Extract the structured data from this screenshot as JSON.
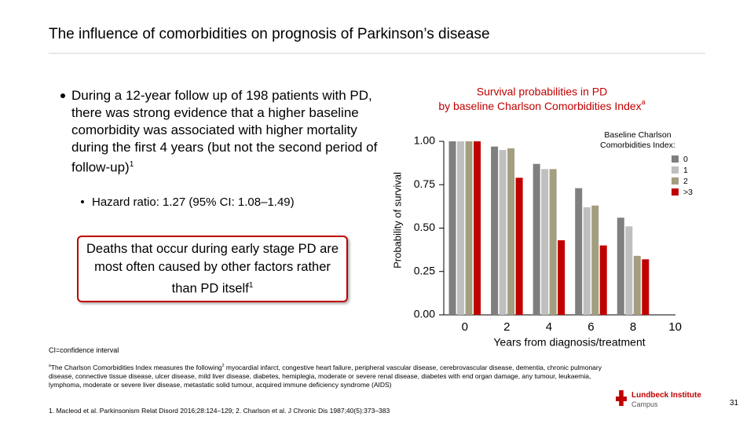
{
  "slide_title": "The influence of comorbidities on prognosis of Parkinson’s disease",
  "bullet": {
    "text": "During a 12-year follow up of 198 patients with PD, there was strong evidence that a higher baseline comorbidity was associated with higher mortality during the first 4 years (but not the second period of follow-up)",
    "ref": "1"
  },
  "sub_bullet": "Hazard ratio: 1.27 (95% CI: 1.08–1.49)",
  "callout": {
    "text": "Deaths that occur during early stage PD are most often caused by other factors rather than PD itself",
    "ref": "1"
  },
  "abbreviation": "CI=confidence interval",
  "footnote": {
    "marker": "a",
    "text_before": "The Charlson Comorbidities Index measures the following",
    "ref": "2",
    "text_after": " myocardial infarct, congestive heart failure, peripheral vascular disease, cerebrovascular disease, dementia, chronic pulmonary disease, connective tissue disease, ulcer disease, mild liver disease, diabetes, hemiplegia, moderate or severe renal disease, diabetes with end organ damage, any tumour, leukaemia, lymphoma, moderate or severe liver disease, metastatic solid tumour, acquired immune deficiency syndrome (AIDS)"
  },
  "references": "1. Macleod et al. Parkinsonism Relat Disord 2016;28:124–129; 2. Charlson et al. J Chronic Dis 1987;40(5):373–383",
  "logo": {
    "name": "Lundbeck Institute",
    "sub": "Campus"
  },
  "page_number": "31",
  "chart_data": {
    "type": "bar",
    "title": "Survival probabilities in PD",
    "subtitle": "by baseline Charlson Comorbidities Index",
    "title_ref": "a",
    "x_label": "Years from diagnosis/treatment",
    "y_label": "Probability of survival",
    "legend_title": "Baseline Charlson Comorbidities Index:",
    "legend_position": "upper right",
    "x": [
      0,
      2,
      4,
      6,
      8
    ],
    "xlim": [
      -1,
      10.5
    ],
    "xticks": [
      0,
      2,
      4,
      6,
      8,
      10
    ],
    "ylim": [
      0,
      1
    ],
    "yticks": [
      {
        "value": 0,
        "label": "0.00"
      },
      0.25,
      {
        "value": 0.5,
        "label": "0.50"
      },
      0.75,
      {
        "value": 1,
        "label": "1.00"
      }
    ],
    "series": [
      {
        "name": "0",
        "color": "#7f7f7f",
        "values": [
          1.0,
          0.97,
          0.87,
          0.73,
          0.56
        ]
      },
      {
        "name": "1",
        "color": "#bfbfbf",
        "values": [
          1.0,
          0.95,
          0.84,
          0.62,
          0.51
        ]
      },
      {
        "name": "2",
        "color": "#a39e80",
        "values": [
          1.0,
          0.96,
          0.84,
          0.63,
          0.34
        ]
      },
      {
        "name": ">3",
        "color": "#c00000",
        "values": [
          1.0,
          0.79,
          0.43,
          0.4,
          0.32
        ]
      }
    ]
  }
}
